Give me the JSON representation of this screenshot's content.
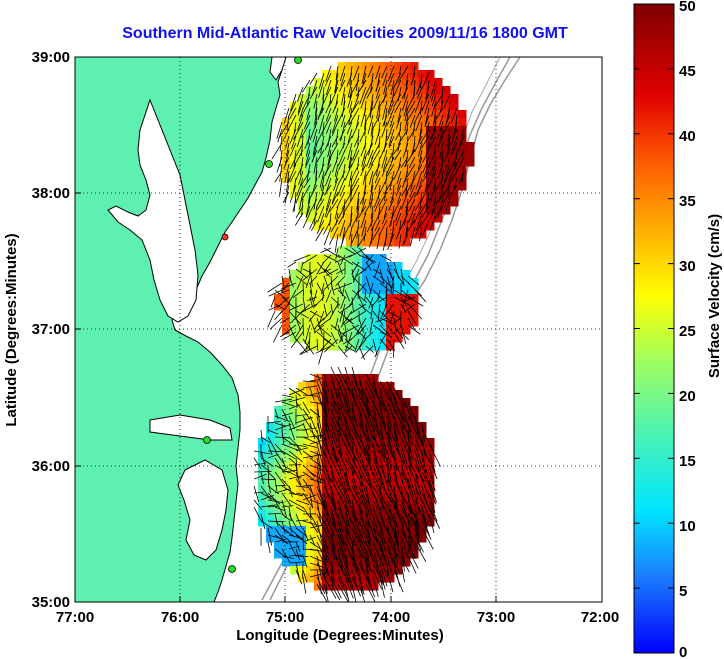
{
  "title": "Southern Mid-Atlantic Raw Velocities 2009/11/16 1800 GMT",
  "xlabel": "Longitude (Degrees:Minutes)",
  "ylabel": "Latitude (Degrees:Minutes)",
  "x_ticks": [
    "77:00",
    "76:00",
    "75:00",
    "74:00",
    "73:00",
    "72:00"
  ],
  "y_ticks": [
    "39:00",
    "38:00",
    "37:00",
    "36:00",
    "35:00"
  ],
  "colorbar": {
    "label": "Surface Velocity (cm/s)",
    "ticks": [
      "0",
      "5",
      "10",
      "15",
      "20",
      "25",
      "30",
      "35",
      "40",
      "45",
      "50"
    ],
    "range": [
      0,
      50
    ]
  },
  "colors": {
    "land": "#5ef0b0",
    "water": "#ffffff",
    "title": "#1010f0",
    "station": "#22dd22",
    "station_alt": "#ff3322"
  }
}
